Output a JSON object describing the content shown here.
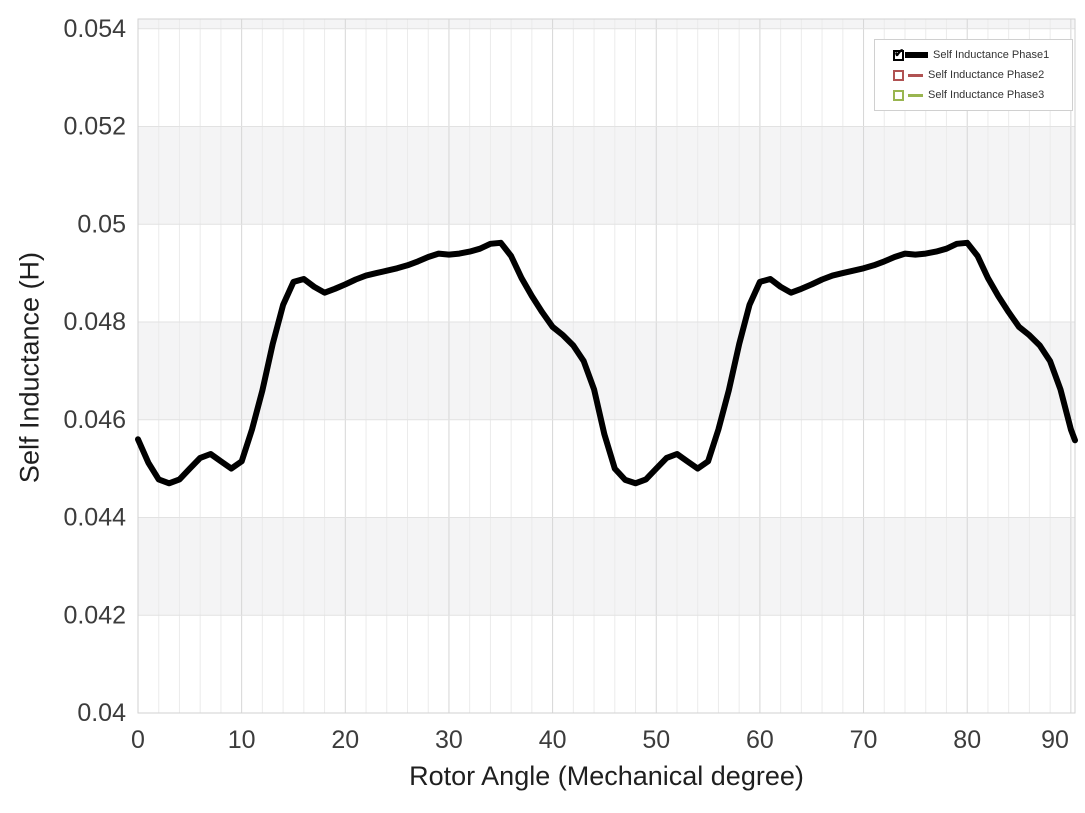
{
  "chart_data": {
    "type": "line",
    "title": "",
    "xlabel": "Rotor Angle (Mechanical degree)",
    "ylabel": "Self Inductance (H)",
    "xlim": [
      0,
      90.4
    ],
    "ylim": [
      0.04,
      0.0542
    ],
    "x_ticks": [
      0,
      10,
      20,
      30,
      40,
      50,
      60,
      70,
      80,
      90
    ],
    "x_minor_step": 2,
    "y_ticks": [
      0.04,
      0.042,
      0.044,
      0.046,
      0.048,
      0.05,
      0.052,
      0.054
    ],
    "y_tick_labels": [
      "0.04",
      "0.042",
      "0.044",
      "0.046",
      "0.048",
      "0.05",
      "0.052",
      "0.054"
    ],
    "grid": true,
    "legend_position": "top-right",
    "series": [
      {
        "name": "Self Inductance Phase1",
        "color": "#000000",
        "width": 6,
        "checked": true,
        "visible": true,
        "x": [
          0,
          1,
          2,
          3,
          4,
          5,
          6,
          7,
          8,
          9,
          10,
          11,
          12,
          13,
          14,
          15,
          16,
          17,
          18,
          19,
          20,
          21,
          22,
          23,
          24,
          25,
          26,
          27,
          28,
          29,
          30,
          31,
          32,
          33,
          34,
          35,
          36,
          37,
          38,
          39,
          40,
          41,
          42,
          43,
          44,
          45,
          46,
          47,
          48,
          49,
          50,
          51,
          52,
          53,
          54,
          55,
          56,
          57,
          58,
          59,
          60,
          61,
          62,
          63,
          64,
          65,
          66,
          67,
          68,
          69,
          70,
          71,
          72,
          73,
          74,
          75,
          76,
          77,
          78,
          79,
          80,
          81,
          82,
          83,
          84,
          85,
          86,
          87,
          88,
          89,
          90,
          90.4
        ],
        "y": [
          0.0456,
          0.04512,
          0.04478,
          0.0447,
          0.04478,
          0.045,
          0.04522,
          0.0453,
          0.04515,
          0.045,
          0.04515,
          0.0458,
          0.0466,
          0.04755,
          0.04835,
          0.04882,
          0.04888,
          0.04872,
          0.0486,
          0.04868,
          0.04877,
          0.04887,
          0.04895,
          0.049,
          0.04905,
          0.0491,
          0.04916,
          0.04924,
          0.04933,
          0.0494,
          0.04938,
          0.0494,
          0.04944,
          0.0495,
          0.0496,
          0.04962,
          0.04935,
          0.0489,
          0.04853,
          0.0482,
          0.0479,
          0.04773,
          0.04752,
          0.0472,
          0.04662,
          0.0457,
          0.045,
          0.04477,
          0.0447,
          0.04478,
          0.045,
          0.04522,
          0.0453,
          0.04515,
          0.045,
          0.04515,
          0.0458,
          0.0466,
          0.04755,
          0.04835,
          0.04882,
          0.04888,
          0.04872,
          0.0486,
          0.04868,
          0.04877,
          0.04887,
          0.04895,
          0.049,
          0.04905,
          0.0491,
          0.04916,
          0.04924,
          0.04933,
          0.0494,
          0.04938,
          0.0494,
          0.04944,
          0.0495,
          0.0496,
          0.04962,
          0.04935,
          0.0489,
          0.04853,
          0.0482,
          0.0479,
          0.04773,
          0.04752,
          0.0472,
          0.04662,
          0.0458,
          0.04558
        ]
      },
      {
        "name": "Self Inductance Phase2",
        "color": "#b05252",
        "width": 3,
        "checked": false,
        "visible": false,
        "x": [],
        "y": []
      },
      {
        "name": "Self Inductance Phase3",
        "color": "#99b550",
        "width": 3,
        "checked": false,
        "visible": false,
        "x": [],
        "y": []
      }
    ]
  },
  "colors": {
    "band_gray": "#f4f4f5",
    "band_white": "#ffffff",
    "grid_minor": "#ebebeb",
    "grid_major_x": "#d6d6d6",
    "grid_h": "#e2e2e2",
    "plot_border": "#d2d2d2",
    "tick_text": "#3c3c3c"
  }
}
